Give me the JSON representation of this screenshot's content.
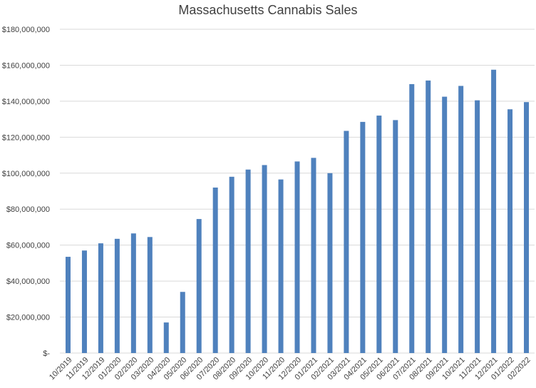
{
  "chart_data": {
    "type": "bar",
    "title": "Massachusetts Cannabis Sales",
    "xlabel": "",
    "ylabel": "",
    "ylim": [
      0,
      180000000
    ],
    "grid": true,
    "legend": "none",
    "bar_color": "#4f81bd",
    "grid_color": "#d9d9d9",
    "y_ticks": [
      "$-",
      "$20,000,000",
      "$40,000,000",
      "$60,000,000",
      "$80,000,000",
      "$100,000,000",
      "$120,000,000",
      "$140,000,000",
      "$160,000,000",
      "$180,000,000"
    ],
    "categories": [
      "10/2019",
      "11/2019",
      "12/2019",
      "01/2020",
      "02/2020",
      "03/2020",
      "04/2020",
      "05/2020",
      "06/2020",
      "07/2020",
      "08/2020",
      "09/2020",
      "10/2020",
      "11/2020",
      "12/2020",
      "01/2021",
      "02/2021",
      "03/2021",
      "04/2021",
      "05/2021",
      "06/2021",
      "07/2021",
      "08/2021",
      "09/2021",
      "10/2021",
      "11/2021",
      "12/2021",
      "01/2022",
      "02/2022"
    ],
    "values": [
      53500000,
      57000000,
      61000000,
      63500000,
      66500000,
      64500000,
      17000000,
      34000000,
      74500000,
      92000000,
      98000000,
      102000000,
      104500000,
      96500000,
      106500000,
      108500000,
      100000000,
      123500000,
      128500000,
      132000000,
      129500000,
      149500000,
      151500000,
      142500000,
      148500000,
      140500000,
      157500000,
      135500000,
      139500000
    ]
  }
}
